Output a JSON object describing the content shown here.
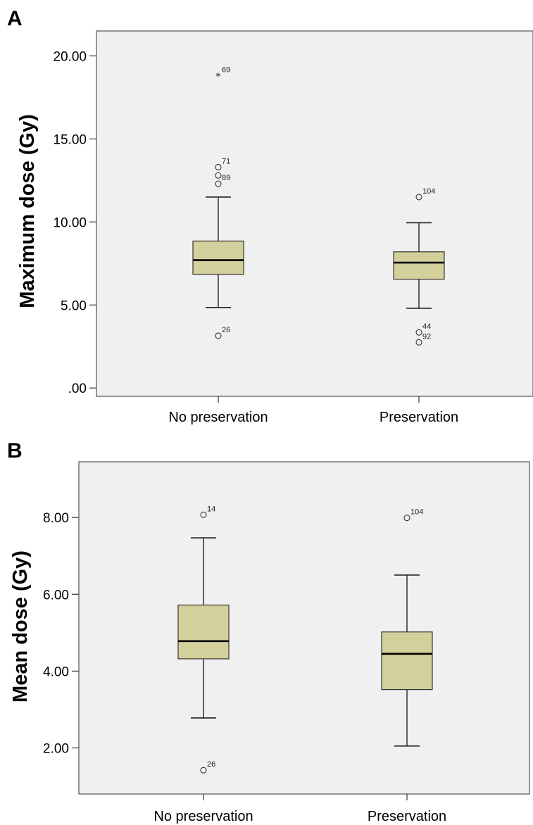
{
  "chart_data": [
    {
      "panel": "A",
      "type": "boxplot",
      "ylabel": "Maximum dose (Gy)",
      "ylim": [
        -0.5,
        21.5
      ],
      "yticks": [
        ".00",
        "5.00",
        "10.00",
        "15.00",
        "20.00"
      ],
      "ytick_values": [
        0,
        5,
        10,
        15,
        20
      ],
      "categories": [
        "No preservation",
        "Preservation"
      ],
      "colors": {
        "box": "#d4d09c",
        "plot_bg": "#f0f0f0"
      },
      "boxes": [
        {
          "category": "No preservation",
          "whisker_low": 4.85,
          "q1": 6.85,
          "median": 7.7,
          "q3": 8.85,
          "whisker_high": 11.5,
          "outliers": [
            {
              "label": "69",
              "value": 18.8,
              "marker": "star"
            },
            {
              "label": "71",
              "value": 13.3,
              "marker": "circle"
            },
            {
              "label": "",
              "value": 12.8,
              "marker": "circle"
            },
            {
              "label": "89",
              "value": 12.3,
              "marker": "circle",
              "nolabel_marker": true
            },
            {
              "label": "26",
              "value": 3.15,
              "marker": "circle"
            }
          ]
        },
        {
          "category": "Preservation",
          "whisker_low": 4.8,
          "q1": 6.55,
          "median": 7.55,
          "q3": 8.2,
          "whisker_high": 9.95,
          "outliers": [
            {
              "label": "104",
              "value": 11.5,
              "marker": "circle"
            },
            {
              "label": "44",
              "value": 3.35,
              "marker": "circle"
            },
            {
              "label": "92",
              "value": 2.75,
              "marker": "circle"
            }
          ]
        }
      ]
    },
    {
      "panel": "B",
      "type": "boxplot",
      "ylabel": "Mean dose (Gy)",
      "ylim": [
        0.8,
        9.45
      ],
      "yticks": [
        "2.00",
        "4.00",
        "6.00",
        "8.00"
      ],
      "ytick_values": [
        2,
        4,
        6,
        8
      ],
      "categories": [
        "No preservation",
        "Preservation"
      ],
      "colors": {
        "box": "#d4d09c",
        "plot_bg": "#f0f0f0"
      },
      "boxes": [
        {
          "category": "No preservation",
          "whisker_low": 2.78,
          "q1": 4.32,
          "median": 4.78,
          "q3": 5.72,
          "whisker_high": 7.47,
          "outliers": [
            {
              "label": "14",
              "value": 8.07,
              "marker": "circle"
            },
            {
              "label": "26",
              "value": 1.42,
              "marker": "circle"
            }
          ]
        },
        {
          "category": "Preservation",
          "whisker_low": 2.05,
          "q1": 3.52,
          "median": 4.45,
          "q3": 5.02,
          "whisker_high": 6.5,
          "outliers": [
            {
              "label": "104",
              "value": 7.99,
              "marker": "circle"
            }
          ]
        }
      ]
    }
  ]
}
